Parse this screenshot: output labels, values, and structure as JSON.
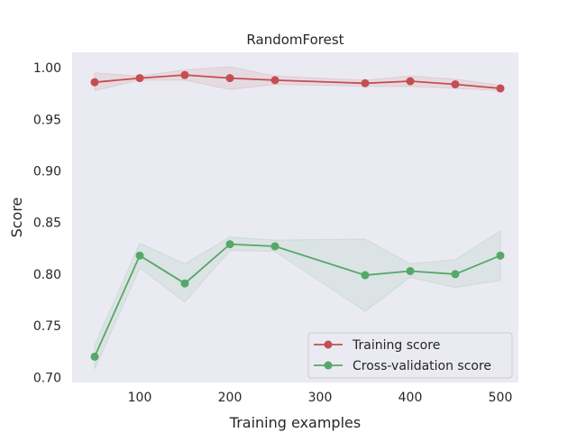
{
  "chart_data": {
    "type": "line",
    "title": "RandomForest",
    "xlabel": "Training examples",
    "ylabel": "Score",
    "xlim": [
      25,
      520
    ],
    "ylim": [
      0.695,
      1.015
    ],
    "x_ticks": [
      100,
      200,
      300,
      400,
      500
    ],
    "y_ticks": [
      0.7,
      0.75,
      0.8,
      0.85,
      0.9,
      0.95,
      1.0
    ],
    "x_tick_labels": [
      "100",
      "200",
      "300",
      "400",
      "500"
    ],
    "y_tick_labels": [
      "0.70",
      "0.75",
      "0.80",
      "0.85",
      "0.90",
      "0.95",
      "1.00"
    ],
    "grid": false,
    "legend_position": "bottom-right",
    "x": [
      50,
      100,
      150,
      200,
      250,
      350,
      400,
      450,
      500
    ],
    "series": [
      {
        "name": "Training score",
        "color": "#c44e52",
        "values": [
          0.986,
          0.99,
          0.993,
          0.99,
          0.988,
          0.985,
          0.987,
          0.984,
          0.98
        ],
        "lower": [
          0.978,
          0.988,
          0.988,
          0.979,
          0.984,
          0.982,
          0.982,
          0.98,
          0.978
        ],
        "upper": [
          0.995,
          0.992,
          0.998,
          1.001,
          0.992,
          0.988,
          0.992,
          0.989,
          0.983
        ]
      },
      {
        "name": "Cross-validation score",
        "color": "#55a868",
        "values": [
          0.72,
          0.818,
          0.791,
          0.829,
          0.827,
          0.799,
          0.803,
          0.8,
          0.818
        ],
        "lower": [
          0.708,
          0.806,
          0.773,
          0.823,
          0.822,
          0.764,
          0.797,
          0.787,
          0.794
        ],
        "upper": [
          0.731,
          0.83,
          0.81,
          0.836,
          0.833,
          0.834,
          0.81,
          0.814,
          0.842
        ]
      }
    ]
  }
}
